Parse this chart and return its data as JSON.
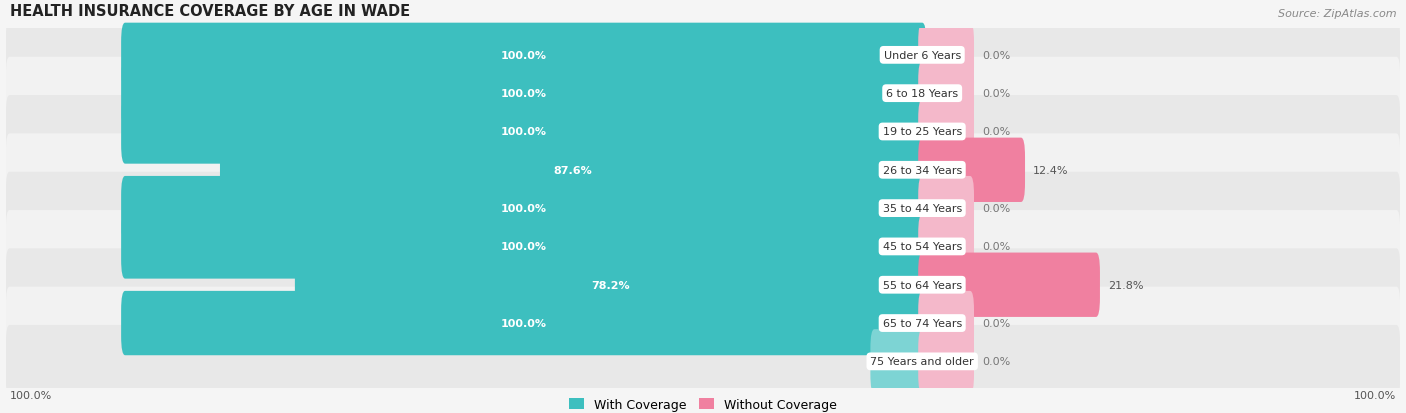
{
  "title": "HEALTH INSURANCE COVERAGE BY AGE IN WADE",
  "source": "Source: ZipAtlas.com",
  "categories": [
    "Under 6 Years",
    "6 to 18 Years",
    "19 to 25 Years",
    "26 to 34 Years",
    "35 to 44 Years",
    "45 to 54 Years",
    "55 to 64 Years",
    "65 to 74 Years",
    "75 Years and older"
  ],
  "with_coverage": [
    100.0,
    100.0,
    100.0,
    87.6,
    100.0,
    100.0,
    78.2,
    100.0,
    0.0
  ],
  "without_coverage": [
    0.0,
    0.0,
    0.0,
    12.4,
    0.0,
    0.0,
    21.8,
    0.0,
    0.0
  ],
  "color_with": "#3dbfbf",
  "color_with_light": "#7dd4d4",
  "color_without": "#f080a0",
  "color_without_light": "#f4b8ca",
  "bg_dark": "#e8e8e8",
  "bg_light": "#f2f2f2",
  "fig_bg": "#f5f5f5",
  "title_fontsize": 10.5,
  "source_fontsize": 8,
  "bar_label_fontsize": 8,
  "category_fontsize": 8,
  "legend_fontsize": 9,
  "axis_label_fontsize": 8
}
